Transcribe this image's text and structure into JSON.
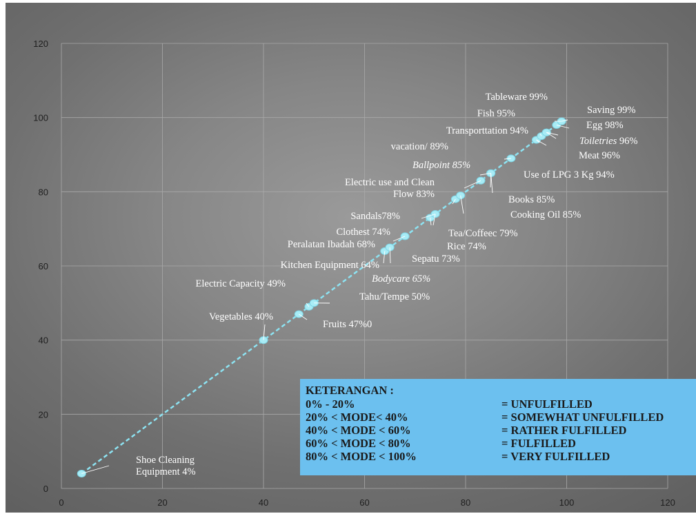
{
  "chart_data": {
    "type": "scatter",
    "xlim": [
      0,
      120
    ],
    "ylim": [
      0,
      120
    ],
    "x_ticks": [
      "0",
      "20",
      "40",
      "60",
      "80",
      "100",
      "120"
    ],
    "y_ticks": [
      "0",
      "20",
      "40",
      "60",
      "80",
      "100",
      "120"
    ],
    "grid": true,
    "line_style": "dashed",
    "marker_color": "#a8ecf6",
    "line_color": "#8de3f2",
    "points": [
      {
        "x": 4,
        "y": 4,
        "label": "Shoe Cleaning\nEquipment 4%"
      },
      {
        "x": 40,
        "y": 40,
        "label": "Vegetables 40%"
      },
      {
        "x": 47,
        "y": 47,
        "label": "Fruits 47%0"
      },
      {
        "x": 49,
        "y": 49,
        "label": "Electric Capacity 49%"
      },
      {
        "x": 50,
        "y": 50,
        "label": "Tahu/Tempe 50%"
      },
      {
        "x": 64,
        "y": 64,
        "label": "Kitchen Equipment 64%"
      },
      {
        "x": 65,
        "y": 65,
        "label": "Bodycare 65%",
        "italic": true
      },
      {
        "x": 68,
        "y": 68,
        "label": "Peralatan Ibadah 68%"
      },
      {
        "x": 73,
        "y": 73,
        "label": "Sepatu 73%"
      },
      {
        "x": 74,
        "y": 74,
        "label": "Clothest 74%"
      },
      {
        "x": 74,
        "y": 74,
        "label": "Rice 74%"
      },
      {
        "x": 78,
        "y": 78,
        "label": "Sandals78%"
      },
      {
        "x": 79,
        "y": 79,
        "label": "Tea/Coffeec 79%"
      },
      {
        "x": 83,
        "y": 83,
        "label": "Electric use and Clean\nFlow 83%"
      },
      {
        "x": 85,
        "y": 85,
        "label": "Ballpoint 85%",
        "italic": true
      },
      {
        "x": 85,
        "y": 85,
        "label": "Books 85%"
      },
      {
        "x": 85,
        "y": 85,
        "label": "Cooking Oil 85%"
      },
      {
        "x": 89,
        "y": 89,
        "label": "vacation/ 89%"
      },
      {
        "x": 94,
        "y": 94,
        "label": "Transporttation 94%"
      },
      {
        "x": 94,
        "y": 94,
        "label": "Use of LPG 3 Kg 94%"
      },
      {
        "x": 95,
        "y": 95,
        "label": "Fish 95%"
      },
      {
        "x": 96,
        "y": 96,
        "label": "Meat  96%"
      },
      {
        "x": 96,
        "y": 96,
        "label": "Toiletries 96%",
        "italic_prefix": "Toiletries"
      },
      {
        "x": 98,
        "y": 98,
        "label": "Egg 98%"
      },
      {
        "x": 99,
        "y": 99,
        "label": "Tableware 99%"
      },
      {
        "x": 99,
        "y": 99,
        "label": "Saving 99%"
      }
    ]
  },
  "legend": {
    "title": "KETERANGAN :",
    "rows": [
      {
        "range": "0% - 20%",
        "desc": "= UNFULFILLED"
      },
      {
        "range": "20% < MODE< 40%",
        "desc": "= SOMEWHAT UNFULFILLED"
      },
      {
        "range": "40% < MODE < 60%",
        "desc": "= RATHER FULFILLED"
      },
      {
        "range": "60% < MODE < 80%",
        "desc": "= FULFILLED"
      },
      {
        "range": "80% < MODE < 100%",
        "desc": " = VERY FULFILLED"
      }
    ]
  }
}
